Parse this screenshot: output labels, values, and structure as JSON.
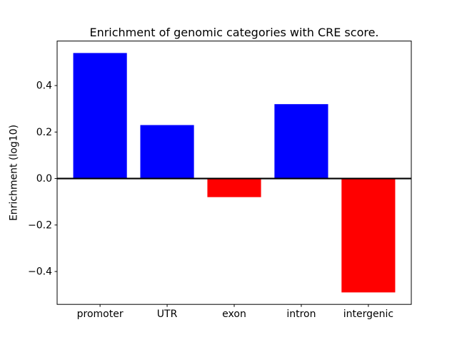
{
  "figure": {
    "title": "Enrichment of genomic categories with CRE score.",
    "ylabel": "Enrichment (log10)",
    "xlabel": ""
  },
  "colors": {
    "positive_bar": "#0000ff",
    "negative_bar": "#ff0000",
    "axis": "#000000",
    "background": "#ffffff"
  },
  "chart_data": {
    "type": "bar",
    "title": "Enrichment of genomic categories with CRE score.",
    "xlabel": "",
    "ylabel": "Enrichment (log10)",
    "categories": [
      "promoter",
      "UTR",
      "exon",
      "intron",
      "intergenic"
    ],
    "values": [
      0.54,
      0.23,
      -0.08,
      0.32,
      -0.49
    ],
    "bar_colors": [
      "#0000ff",
      "#0000ff",
      "#ff0000",
      "#0000ff",
      "#ff0000"
    ],
    "yticks": [
      -0.4,
      -0.2,
      0.0,
      0.2,
      0.4
    ],
    "ylim": [
      -0.5415,
      0.5915
    ],
    "xlim": [
      -0.64,
      4.64
    ],
    "bar_width": 0.8,
    "grid": false,
    "legend": null,
    "zero_line": true
  }
}
